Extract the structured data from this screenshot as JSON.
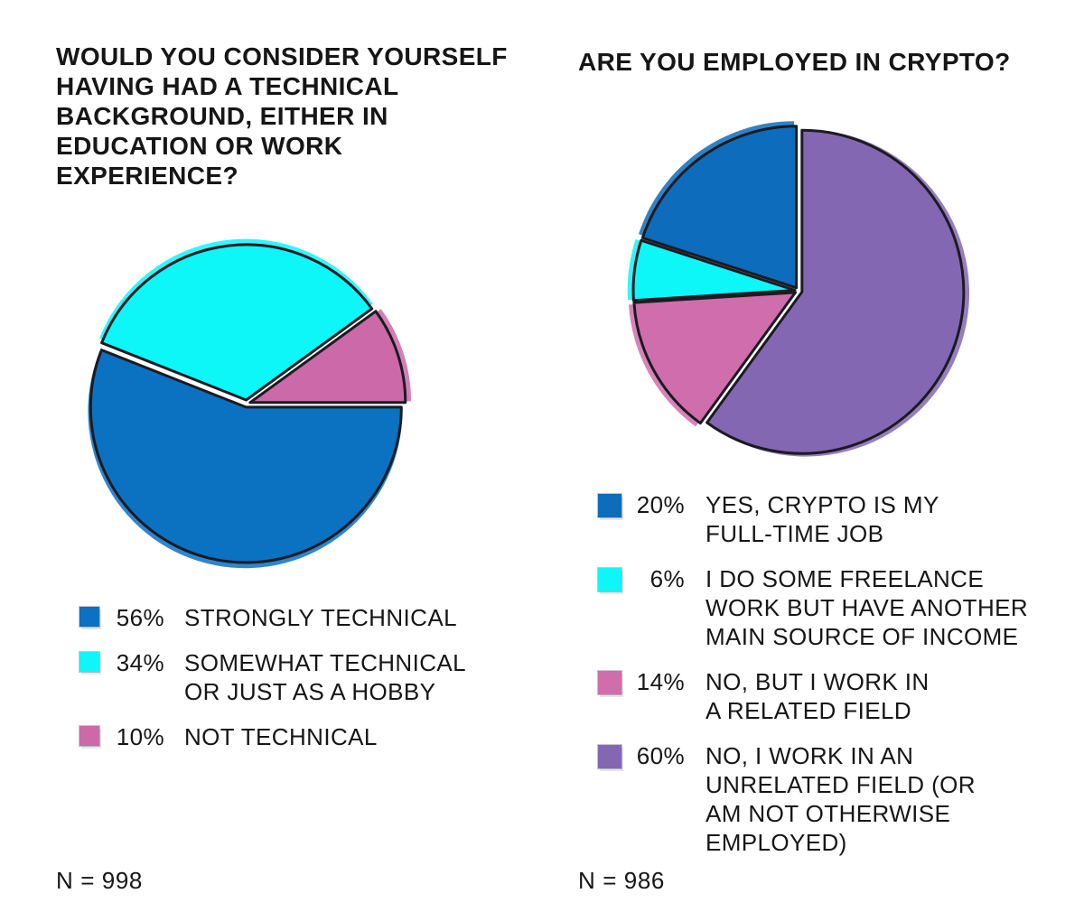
{
  "page": {
    "background": "#ffffff",
    "text_color": "#161616",
    "outline_color": "#1b1b22"
  },
  "chart_data": [
    {
      "type": "pie",
      "id": "technical-background",
      "title": "WOULD YOU CONSIDER YOURSELF\nHAVING HAD A TECHNICAL\nBACKGROUND, EITHER IN\nEDUCATION OR WORK\nEXPERIENCE?",
      "n_label": "N = 998",
      "sample_size": 998,
      "start_angle_deg": 0,
      "direction": "clockwise",
      "radius_px": 172,
      "categories": [
        "STRONGLY TECHNICAL",
        "SOMEWHAT TECHNICAL OR JUST AS A HOBBY",
        "NOT TECHNICAL"
      ],
      "category_lines": [
        [
          "STRONGLY TECHNICAL"
        ],
        [
          "SOMEWHAT TECHNICAL",
          "OR JUST AS A HOBBY"
        ],
        [
          "NOT TECHNICAL"
        ]
      ],
      "values": [
        56,
        34,
        10
      ],
      "value_labels": [
        "56%",
        "34%",
        "10%"
      ],
      "colors": [
        "#0b71c1",
        "#0df6f8",
        "#cb69a9"
      ],
      "legend_position": "below"
    },
    {
      "type": "pie",
      "id": "employed-in-crypto",
      "title": "ARE YOU EMPLOYED IN CRYPTO?",
      "n_label": "N = 986",
      "sample_size": 986,
      "start_angle_deg": 270,
      "direction": "counterclockwise",
      "radius_px": 179,
      "categories": [
        "YES, CRYPTO IS MY FULL-TIME JOB",
        "I DO SOME FREELANCE WORK BUT HAVE ANOTHER MAIN SOURCE OF INCOME",
        "NO, BUT I WORK IN A RELATED FIELD",
        "NO, I WORK IN AN UNRELATED FIELD (OR AM NOT OTHERWISE EMPLOYED)"
      ],
      "category_lines": [
        [
          "YES, CRYPTO IS MY",
          "FULL-TIME JOB"
        ],
        [
          "I DO SOME FREELANCE",
          "WORK BUT HAVE ANOTHER",
          "MAIN SOURCE OF INCOME"
        ],
        [
          "NO, BUT I WORK IN",
          "A RELATED FIELD"
        ],
        [
          "NO, I WORK IN AN",
          "UNRELATED FIELD (OR",
          "AM NOT OTHERWISE",
          "EMPLOYED)"
        ]
      ],
      "values": [
        20,
        6,
        14,
        60
      ],
      "value_labels": [
        "20%",
        "6%",
        "14%",
        "60%"
      ],
      "colors": [
        "#0d6cbb",
        "#0df6f8",
        "#d06dac",
        "#8467b2"
      ],
      "legend_position": "below"
    }
  ]
}
